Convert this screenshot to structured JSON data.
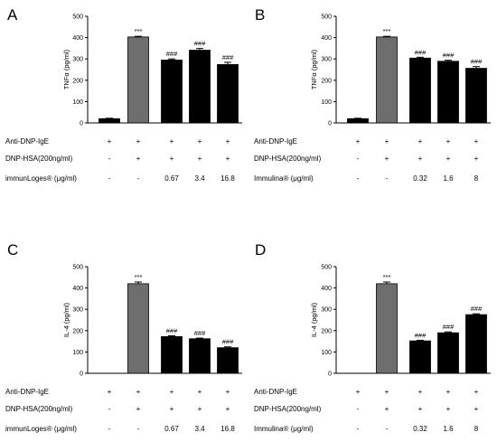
{
  "chart_data": [
    {
      "type": "bar",
      "panel_label": "A",
      "ylabel": "TNFα (pg/ml)",
      "ylim": [
        0,
        500
      ],
      "yticks": [
        "0",
        "100",
        "200",
        "300",
        "400",
        "500"
      ],
      "values": [
        20,
        403,
        295,
        341,
        274
      ],
      "errors": [
        2,
        3,
        5,
        8,
        10
      ],
      "bar_colors": [
        "#000000",
        "#6e6e6e",
        "#000000",
        "#000000",
        "#000000"
      ],
      "annotations": [
        "",
        "***",
        "###",
        "###",
        "###"
      ],
      "table": [
        {
          "label": "Anti-DNP-IgE",
          "cells": [
            "+",
            "+",
            "+",
            "+",
            "+"
          ]
        },
        {
          "label": "DNP-HSA(200ng/ml)",
          "cells": [
            "-",
            "+",
            "+",
            "+",
            "+"
          ]
        },
        {
          "label": "immunLoges® (μg/ml)",
          "cells": [
            "-",
            "-",
            "0.67",
            "3.4",
            "16.8"
          ]
        }
      ]
    },
    {
      "type": "bar",
      "panel_label": "B",
      "ylabel": "TNFα (pg/ml)",
      "ylim": [
        0,
        500
      ],
      "yticks": [
        "0",
        "100",
        "200",
        "300",
        "400",
        "500"
      ],
      "values": [
        20,
        403,
        304,
        289,
        256
      ],
      "errors": [
        2,
        3,
        4,
        5,
        8
      ],
      "bar_colors": [
        "#000000",
        "#6e6e6e",
        "#000000",
        "#000000",
        "#000000"
      ],
      "annotations": [
        "",
        "***",
        "###",
        "###",
        "###"
      ],
      "table": [
        {
          "label": "Anti-DNP-IgE",
          "cells": [
            "+",
            "+",
            "+",
            "+",
            "+"
          ]
        },
        {
          "label": "DNP-HSA(200ng/ml)",
          "cells": [
            "-",
            "+",
            "+",
            "+",
            "+"
          ]
        },
        {
          "label": "Immulina® (μg/ml)",
          "cells": [
            "-",
            "-",
            "0.32",
            "1.6",
            "8"
          ]
        }
      ]
    },
    {
      "type": "bar",
      "panel_label": "C",
      "ylabel": "IL-4 (pg/ml)",
      "ylim": [
        0,
        500
      ],
      "yticks": [
        "0",
        "100",
        "200",
        "300",
        "400",
        "500"
      ],
      "values": [
        0,
        420,
        172,
        162,
        120
      ],
      "errors": [
        0,
        8,
        4,
        3,
        4
      ],
      "bar_colors": [
        "#000000",
        "#6e6e6e",
        "#000000",
        "#000000",
        "#000000"
      ],
      "annotations": [
        "",
        "***",
        "###",
        "###",
        "###"
      ],
      "table": [
        {
          "label": "Anti-DNP-IgE",
          "cells": [
            "+",
            "+",
            "+",
            "+",
            "+"
          ]
        },
        {
          "label": "DNP-HSA(200ng/ml)",
          "cells": [
            "-",
            "+",
            "+",
            "+",
            "+"
          ]
        },
        {
          "label": "immunLoges® (μg/ml)",
          "cells": [
            "-",
            "-",
            "0.67",
            "3.4",
            "16.8"
          ]
        }
      ]
    },
    {
      "type": "bar",
      "panel_label": "D",
      "ylabel": "IL-4 (pg/ml)",
      "ylim": [
        0,
        500
      ],
      "yticks": [
        "0",
        "100",
        "200",
        "300",
        "400",
        "500"
      ],
      "values": [
        0,
        420,
        152,
        190,
        275
      ],
      "errors": [
        0,
        8,
        3,
        4,
        4
      ],
      "bar_colors": [
        "#000000",
        "#6e6e6e",
        "#000000",
        "#000000",
        "#000000"
      ],
      "annotations": [
        "",
        "***",
        "###",
        "###",
        "###"
      ],
      "table": [
        {
          "label": "Anti-DNP-IgE",
          "cells": [
            "+",
            "+",
            "+",
            "+",
            "+"
          ]
        },
        {
          "label": "DNP-HSA(200ng/ml)",
          "cells": [
            "-",
            "+",
            "+",
            "+",
            "+"
          ]
        },
        {
          "label": "Immulina® (μg/ml)",
          "cells": [
            "-",
            "-",
            "0.32",
            "1.6",
            "8"
          ]
        }
      ]
    }
  ]
}
